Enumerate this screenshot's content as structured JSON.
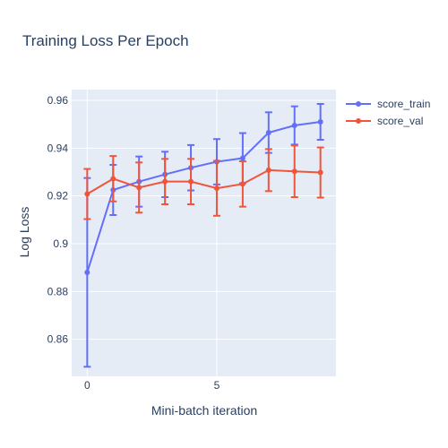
{
  "chart_data": {
    "type": "line",
    "title": "Training Loss Per Epoch",
    "xlabel": "Mini-batch iteration",
    "ylabel": "Log Loss",
    "xlim": [
      -0.6,
      9.6
    ],
    "ylim": [
      0.8445,
      0.9645
    ],
    "xticks": [
      0,
      5
    ],
    "yticks": [
      0.86,
      0.88,
      0.9,
      0.92,
      0.94,
      0.96
    ],
    "ytick_labels": [
      "0.86",
      "0.88",
      "0.9",
      "0.92",
      "0.94",
      "0.96"
    ],
    "grid": true,
    "legend_position": "top-right",
    "x": [
      0,
      1,
      2,
      3,
      4,
      5,
      6,
      7,
      8,
      9
    ],
    "series": [
      {
        "name": "score_train",
        "color": "#636efa",
        "values": [
          0.888,
          0.9225,
          0.926,
          0.929,
          0.9318,
          0.9343,
          0.9358,
          0.9465,
          0.9495,
          0.951
        ],
        "errors": [
          0.0395,
          0.0105,
          0.0105,
          0.0095,
          0.0095,
          0.0095,
          0.0105,
          0.0085,
          0.008,
          0.0075
        ]
      },
      {
        "name": "score_val",
        "color": "#ef553b",
        "values": [
          0.9208,
          0.9272,
          0.9235,
          0.926,
          0.926,
          0.9232,
          0.925,
          0.9308,
          0.9303,
          0.9298
        ],
        "errors": [
          0.0105,
          0.0095,
          0.0105,
          0.0095,
          0.0095,
          0.0115,
          0.0095,
          0.0088,
          0.0108,
          0.0105
        ]
      }
    ]
  }
}
